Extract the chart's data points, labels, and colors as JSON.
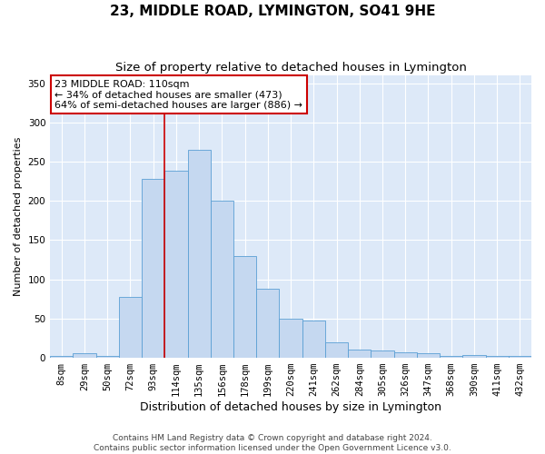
{
  "title": "23, MIDDLE ROAD, LYMINGTON, SO41 9HE",
  "subtitle": "Size of property relative to detached houses in Lymington",
  "xlabel": "Distribution of detached houses by size in Lymington",
  "ylabel": "Number of detached properties",
  "categories": [
    "8sqm",
    "29sqm",
    "50sqm",
    "72sqm",
    "93sqm",
    "114sqm",
    "135sqm",
    "156sqm",
    "178sqm",
    "199sqm",
    "220sqm",
    "241sqm",
    "262sqm",
    "284sqm",
    "305sqm",
    "326sqm",
    "347sqm",
    "368sqm",
    "390sqm",
    "411sqm",
    "432sqm"
  ],
  "values": [
    2,
    6,
    2,
    78,
    228,
    238,
    265,
    200,
    130,
    88,
    50,
    47,
    20,
    11,
    9,
    7,
    6,
    2,
    4,
    2,
    2
  ],
  "bar_color": "#c5d8f0",
  "bar_edge_color": "#5a9fd4",
  "marker_line_color": "#cc0000",
  "annotation_text": "23 MIDDLE ROAD: 110sqm\n← 34% of detached houses are smaller (473)\n64% of semi-detached houses are larger (886) →",
  "annotation_box_facecolor": "#ffffff",
  "annotation_box_edgecolor": "#cc0000",
  "ylim": [
    0,
    360
  ],
  "yticks": [
    0,
    50,
    100,
    150,
    200,
    250,
    300,
    350
  ],
  "fig_bg_color": "#ffffff",
  "plot_bg_color": "#dde9f8",
  "footer_text": "Contains HM Land Registry data © Crown copyright and database right 2024.\nContains public sector information licensed under the Open Government Licence v3.0.",
  "title_fontsize": 11,
  "subtitle_fontsize": 9.5,
  "xlabel_fontsize": 9,
  "ylabel_fontsize": 8,
  "tick_fontsize": 7.5,
  "annotation_fontsize": 8,
  "footer_fontsize": 6.5
}
